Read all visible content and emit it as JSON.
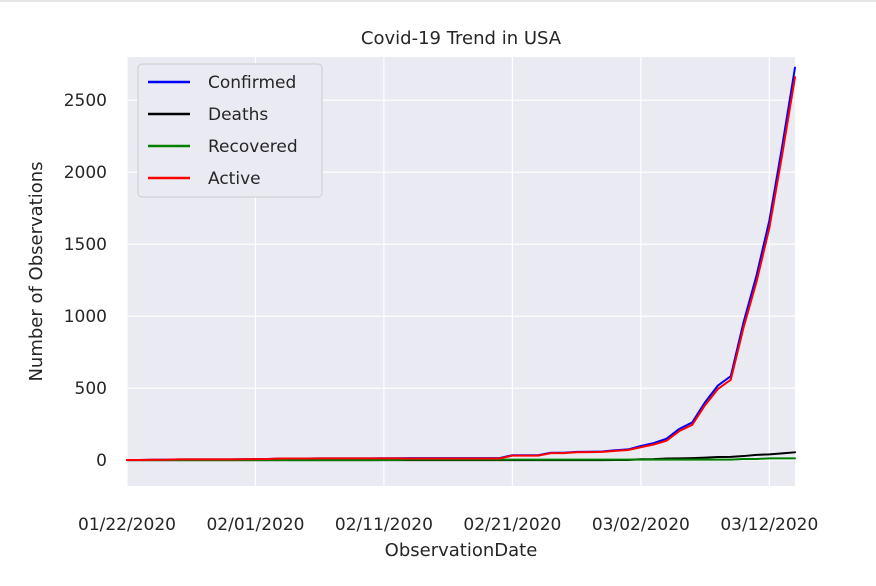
{
  "chart_data": {
    "type": "line",
    "title": "Covid-19 Trend in USA",
    "xlabel": "ObservationDate",
    "ylabel": "Number of Observations",
    "x_tick_labels": [
      "01/22/2020",
      "02/01/2020",
      "02/11/2020",
      "02/21/2020",
      "03/02/2020",
      "03/12/2020"
    ],
    "y_tick_labels": [
      "0",
      "500",
      "1000",
      "1500",
      "2000",
      "2500"
    ],
    "y_ticks": [
      0,
      500,
      1000,
      1500,
      2000,
      2500
    ],
    "xlim": [
      "01/22/2020",
      "03/14/2020"
    ],
    "ylim": [
      -180,
      2800
    ],
    "grid": true,
    "legend_position": "top-left",
    "x": [
      "01/22/2020",
      "01/23/2020",
      "01/24/2020",
      "01/25/2020",
      "01/26/2020",
      "01/27/2020",
      "01/28/2020",
      "01/29/2020",
      "01/30/2020",
      "01/31/2020",
      "02/01/2020",
      "02/02/2020",
      "02/03/2020",
      "02/04/2020",
      "02/05/2020",
      "02/06/2020",
      "02/07/2020",
      "02/08/2020",
      "02/09/2020",
      "02/10/2020",
      "02/11/2020",
      "02/12/2020",
      "02/13/2020",
      "02/14/2020",
      "02/15/2020",
      "02/16/2020",
      "02/17/2020",
      "02/18/2020",
      "02/19/2020",
      "02/20/2020",
      "02/21/2020",
      "02/22/2020",
      "02/23/2020",
      "02/24/2020",
      "02/25/2020",
      "02/26/2020",
      "02/27/2020",
      "02/28/2020",
      "02/29/2020",
      "03/01/2020",
      "03/02/2020",
      "03/03/2020",
      "03/04/2020",
      "03/05/2020",
      "03/06/2020",
      "03/07/2020",
      "03/08/2020",
      "03/09/2020",
      "03/10/2020",
      "03/11/2020",
      "03/12/2020",
      "03/13/2020",
      "03/14/2020"
    ],
    "series": [
      {
        "name": "Confirmed",
        "color": "#0000ff",
        "values": [
          1,
          1,
          2,
          2,
          5,
          5,
          5,
          5,
          5,
          6,
          7,
          8,
          11,
          11,
          11,
          12,
          12,
          12,
          12,
          12,
          13,
          13,
          14,
          14,
          14,
          14,
          14,
          14,
          14,
          14,
          34,
          34,
          34,
          51,
          51,
          57,
          58,
          60,
          68,
          74,
          98,
          118,
          149,
          217,
          262,
          402,
          518,
          583,
          959,
          1281,
          1663,
          2179,
          2726
        ]
      },
      {
        "name": "Deaths",
        "color": "#000000",
        "values": [
          0,
          0,
          0,
          0,
          0,
          0,
          0,
          0,
          0,
          0,
          0,
          0,
          0,
          0,
          0,
          0,
          0,
          0,
          0,
          0,
          0,
          0,
          0,
          0,
          0,
          0,
          0,
          0,
          0,
          0,
          0,
          0,
          0,
          0,
          0,
          0,
          0,
          0,
          1,
          1,
          6,
          7,
          11,
          12,
          14,
          17,
          21,
          22,
          28,
          36,
          40,
          47,
          54
        ]
      },
      {
        "name": "Recovered",
        "color": "#008000",
        "values": [
          0,
          0,
          0,
          0,
          0,
          0,
          0,
          0,
          0,
          0,
          0,
          0,
          0,
          0,
          0,
          0,
          0,
          0,
          0,
          0,
          1,
          1,
          3,
          3,
          3,
          3,
          3,
          3,
          3,
          3,
          3,
          3,
          3,
          3,
          3,
          3,
          3,
          3,
          3,
          3,
          3,
          3,
          3,
          3,
          3,
          3,
          3,
          3,
          8,
          8,
          12,
          12,
          12
        ]
      },
      {
        "name": "Active",
        "color": "#ff0000",
        "values": [
          1,
          1,
          2,
          2,
          5,
          5,
          5,
          5,
          5,
          6,
          7,
          8,
          11,
          11,
          11,
          12,
          12,
          12,
          12,
          12,
          12,
          12,
          11,
          11,
          11,
          11,
          11,
          11,
          11,
          11,
          31,
          31,
          31,
          48,
          48,
          54,
          55,
          57,
          64,
          70,
          89,
          108,
          135,
          202,
          245,
          382,
          494,
          558,
          923,
          1237,
          1611,
          2120,
          2660
        ]
      }
    ]
  }
}
